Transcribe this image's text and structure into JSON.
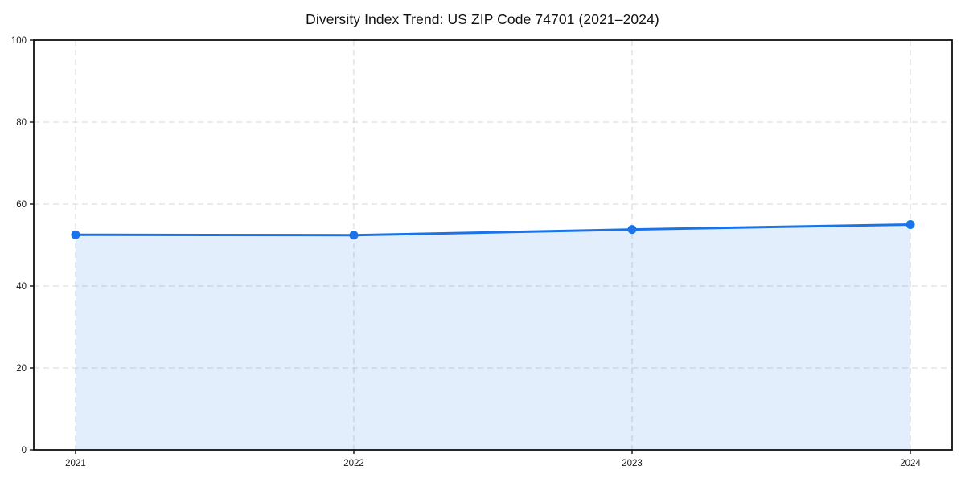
{
  "chart_data": {
    "type": "area",
    "title": "Diversity Index Trend: US ZIP Code 74701 (2021–2024)",
    "x": [
      "2021",
      "2022",
      "2023",
      "2024"
    ],
    "series": [
      {
        "name": "Diversity Index",
        "values": [
          52.5,
          52.4,
          53.8,
          55.0
        ]
      }
    ],
    "xlabel": "",
    "ylabel": "",
    "ylim": [
      0,
      100
    ],
    "yticks": [
      0,
      20,
      40,
      60,
      80,
      100
    ],
    "grid": true,
    "grid_style": "dashed",
    "legend": "none",
    "colors": {
      "line": "#1a73e8",
      "marker": "#1a73e8",
      "fill": "rgba(26,115,232,0.12)",
      "gridline": "#d7d7d7",
      "spine": "#111111",
      "tick_label": "#1a1a1a",
      "title": "#111111"
    }
  }
}
